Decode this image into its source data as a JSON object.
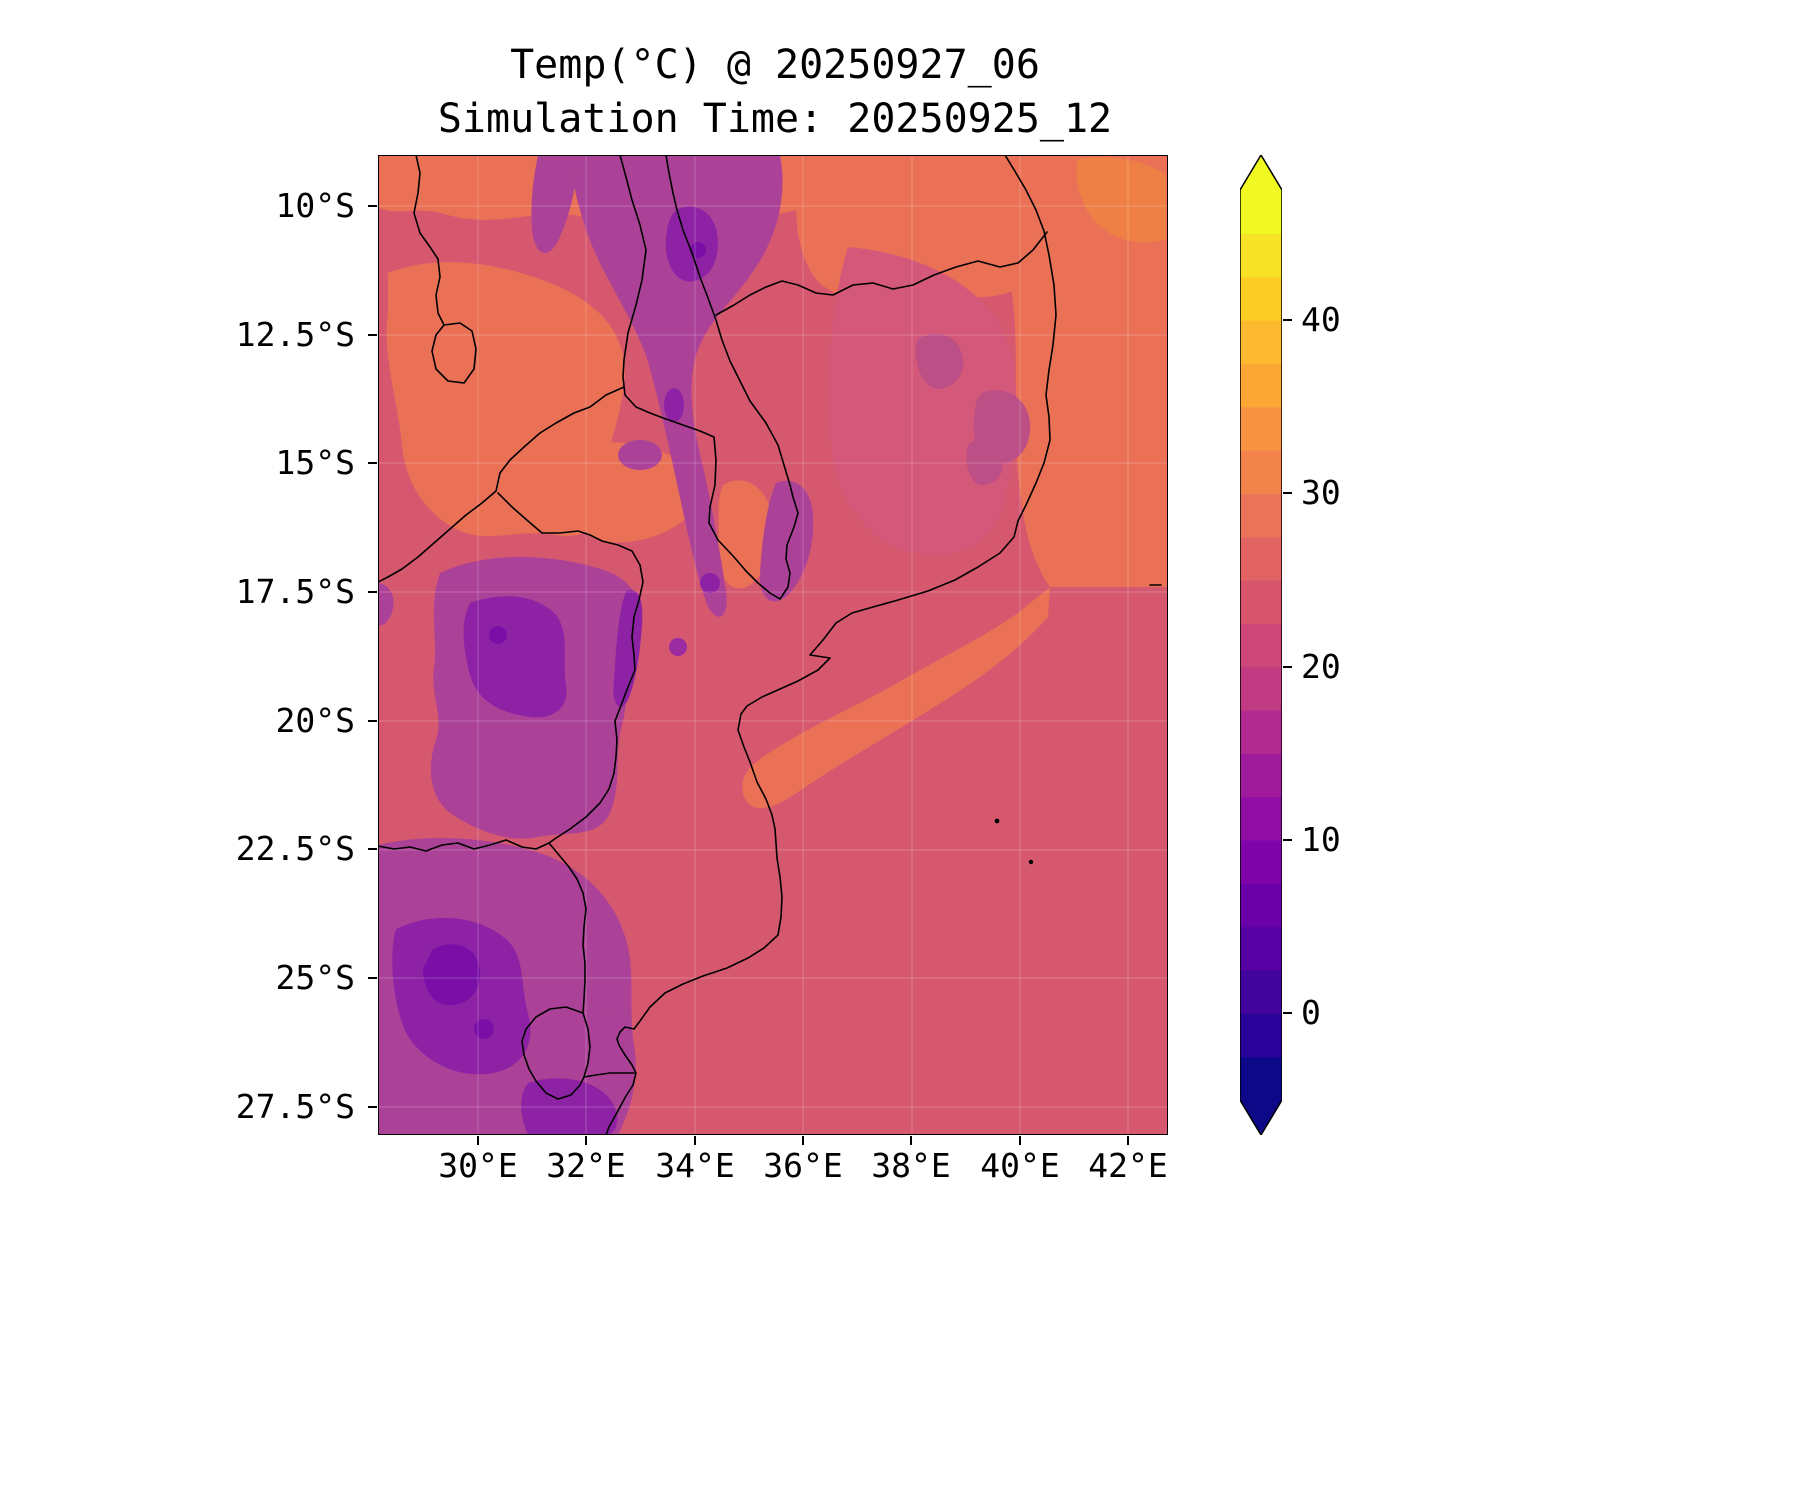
{
  "title": "Temp(°C) @ 20250927_06",
  "subtitle": "Simulation Time: 20250925_12",
  "axes": {
    "lat_ticks": [
      "10°S",
      "12.5°S",
      "15°S",
      "17.5°S",
      "20°S",
      "22.5°S",
      "25°S",
      "27.5°S"
    ],
    "lon_ticks": [
      "30°E",
      "32°E",
      "34°E",
      "36°E",
      "38°E",
      "40°E",
      "42°E"
    ]
  },
  "colorbar": {
    "tick_labels": [
      "40",
      "30",
      "20",
      "10",
      "0"
    ],
    "tick_values": [
      40,
      30,
      20,
      10,
      0
    ],
    "range": [
      -5,
      47.5
    ],
    "band_interval": 2.5,
    "colormap": "plasma",
    "over_color": "#f0f921",
    "under_color": "#0d0887",
    "colors": [
      "#0d0887",
      "#2a049a",
      "#41049d",
      "#5601a4",
      "#6a00a8",
      "#7e03a8",
      "#8f0da4",
      "#a01a9c",
      "#b12a90",
      "#c13b82",
      "#cc4778",
      "#d6556d",
      "#e16462",
      "#ea7457",
      "#f2844b",
      "#f89441",
      "#fca636",
      "#fdb92f",
      "#fcce25",
      "#f7e225",
      "#f0f921"
    ]
  },
  "chart_data": {
    "type": "heatmap",
    "title": "Temp(°C) @ 20250927_06",
    "subtitle": "Simulation Time: 20250925_12",
    "variable": "Temp",
    "units": "°C",
    "valid_time": "20250927_06",
    "simulation_time": "20250925_12",
    "xlabel": "",
    "ylabel": "",
    "lon_range_deg_east": [
      28.1,
      42.7
    ],
    "lat_range_deg": [
      -28.0,
      -9.0
    ],
    "x_tick_labels": [
      "30°E",
      "32°E",
      "34°E",
      "36°E",
      "38°E",
      "40°E",
      "42°E"
    ],
    "y_tick_labels": [
      "10°S",
      "12.5°S",
      "15°S",
      "17.5°S",
      "20°S",
      "22.5°S",
      "25°S",
      "27.5°S"
    ],
    "grid": true,
    "legend_position": "right-colorbar",
    "colorbar_ticks": [
      0,
      10,
      20,
      30,
      40
    ],
    "colorbar_range": [
      -5,
      47.5
    ],
    "contour_interval": 2.5,
    "colormap": "plasma",
    "grid_lons": [
      28.5,
      30.5,
      32.5,
      34.5,
      36.5,
      38.5,
      40.5,
      42.5
    ],
    "grid_lats": [
      -9.5,
      -11.5,
      -13.5,
      -15.5,
      -17.5,
      -19.5,
      -21.5,
      -23.5,
      -25.5,
      -27.5
    ],
    "values_degC": [
      [
        27,
        26,
        17,
        15,
        27,
        27,
        28,
        28
      ],
      [
        27,
        27,
        22,
        16,
        25,
        26,
        28,
        28
      ],
      [
        26,
        28,
        24,
        17,
        24,
        23,
        27,
        28
      ],
      [
        24,
        26,
        23,
        19,
        27,
        23,
        26,
        28
      ],
      [
        23,
        21,
        17,
        24,
        28,
        26,
        28,
        24
      ],
      [
        23,
        16,
        15,
        23,
        28,
        24,
        24,
        24
      ],
      [
        23,
        18,
        21,
        24,
        24,
        24,
        24,
        24
      ],
      [
        22,
        15,
        22,
        24,
        24,
        24,
        24,
        24
      ],
      [
        13,
        12,
        19,
        24,
        24,
        24,
        24,
        24
      ],
      [
        12,
        14,
        22,
        24,
        24,
        24,
        24,
        24
      ]
    ]
  }
}
